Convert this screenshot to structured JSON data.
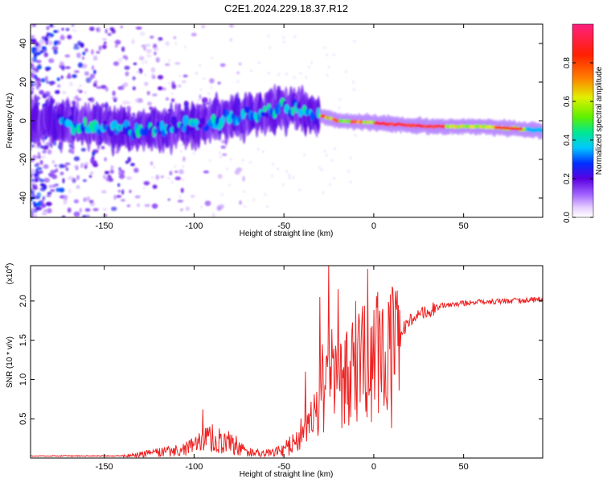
{
  "title": "C2E1.2024.229.18.37.R12",
  "chart_data": [
    {
      "type": "heatmap",
      "xlabel": "Height of straight line (km)",
      "ylabel": "Frequency (Hz)",
      "xlim": [
        -191,
        94
      ],
      "ylim": [
        -50,
        50
      ],
      "xticks": [
        -150,
        -100,
        -50,
        0,
        50
      ],
      "yticks": [
        -40,
        -20,
        0,
        20,
        40
      ],
      "colorbar": {
        "label": "Normalized spectral amplitude",
        "range": [
          0,
          1
        ],
        "ticks": [
          0.0,
          0.2,
          0.4,
          0.6,
          0.8
        ],
        "colors": [
          "#ffffff",
          "#e6d0ff",
          "#8a3cf0",
          "#5a00e0",
          "#0030ff",
          "#00c8ff",
          "#00e890",
          "#60f000",
          "#e0f000",
          "#ff8000",
          "#ff2000",
          "#ff2080"
        ]
      },
      "band_center": [
        {
          "x": -191,
          "y": 0
        },
        {
          "x": -150,
          "y": -3
        },
        {
          "x": -130,
          "y": -5
        },
        {
          "x": -100,
          "y": -2
        },
        {
          "x": -70,
          "y": 3
        },
        {
          "x": -45,
          "y": 7
        },
        {
          "x": -35,
          "y": 4
        },
        {
          "x": -20,
          "y": 0
        },
        {
          "x": 0,
          "y": -1
        },
        {
          "x": 30,
          "y": -3
        },
        {
          "x": 60,
          "y": -3
        },
        {
          "x": 94,
          "y": -5
        }
      ]
    },
    {
      "type": "line",
      "xlabel": "Height of straight line (km)",
      "ylabel": "SNR (10 * v/v)",
      "y_multiplier": "(x10^4)",
      "y_multiplier_base": "(x10",
      "y_multiplier_exp": "4",
      "y_multiplier_close": ")",
      "xlim": [
        -191,
        94
      ],
      "ylim": [
        0,
        2.45
      ],
      "xticks": [
        -150,
        -100,
        -50,
        0,
        50
      ],
      "yticks": [
        0.5,
        1.0,
        1.5,
        2.0
      ],
      "yticklabels": [
        "0.5",
        "1.0",
        "1.5",
        "2.0"
      ],
      "color": "#ee2222",
      "trend": [
        {
          "x": -191,
          "y": 0.02
        },
        {
          "x": -140,
          "y": 0.02
        },
        {
          "x": -130,
          "y": 0.05
        },
        {
          "x": -115,
          "y": 0.08
        },
        {
          "x": -100,
          "y": 0.15
        },
        {
          "x": -90,
          "y": 0.28
        },
        {
          "x": -80,
          "y": 0.2
        },
        {
          "x": -70,
          "y": 0.08
        },
        {
          "x": -60,
          "y": 0.06
        },
        {
          "x": -50,
          "y": 0.1
        },
        {
          "x": -40,
          "y": 0.3
        },
        {
          "x": -30,
          "y": 0.7
        },
        {
          "x": -20,
          "y": 0.95
        },
        {
          "x": -10,
          "y": 1.15
        },
        {
          "x": 0,
          "y": 1.3
        },
        {
          "x": 10,
          "y": 1.45
        },
        {
          "x": 20,
          "y": 1.75
        },
        {
          "x": 30,
          "y": 1.88
        },
        {
          "x": 40,
          "y": 1.95
        },
        {
          "x": 55,
          "y": 1.98
        },
        {
          "x": 75,
          "y": 2.0
        },
        {
          "x": 94,
          "y": 2.02
        }
      ],
      "spikes": [
        {
          "x": -95,
          "y": 0.62
        },
        {
          "x": -38,
          "y": 1.1
        },
        {
          "x": -30,
          "y": 2.05
        },
        {
          "x": -25,
          "y": 2.45
        },
        {
          "x": -20,
          "y": 2.15
        },
        {
          "x": -10,
          "y": 2.0
        },
        {
          "x": 5,
          "y": 1.9
        },
        {
          "x": 10,
          "y": 0.38
        }
      ]
    }
  ]
}
